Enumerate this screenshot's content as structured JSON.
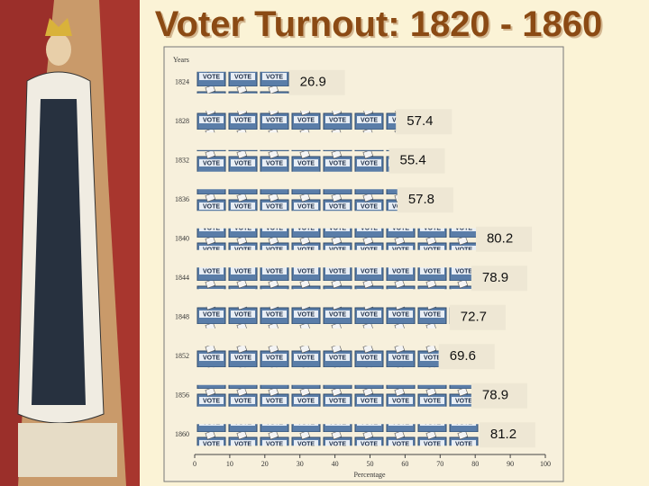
{
  "chart_data": {
    "type": "pictograph-bar",
    "title": "Voter Turnout:  1820 - 1860",
    "y_label": "Years",
    "x_label": "Percentage",
    "categories": [
      "1824",
      "1828",
      "1832",
      "1836",
      "1840",
      "1844",
      "1848",
      "1852",
      "1856",
      "1860"
    ],
    "values": [
      26.9,
      57.4,
      55.4,
      57.8,
      80.2,
      78.9,
      72.7,
      69.6,
      78.9,
      81.2
    ],
    "xlim": [
      0,
      100
    ],
    "xticks": [
      0,
      10,
      20,
      30,
      40,
      50,
      60,
      70,
      80,
      90,
      100
    ]
  }
}
